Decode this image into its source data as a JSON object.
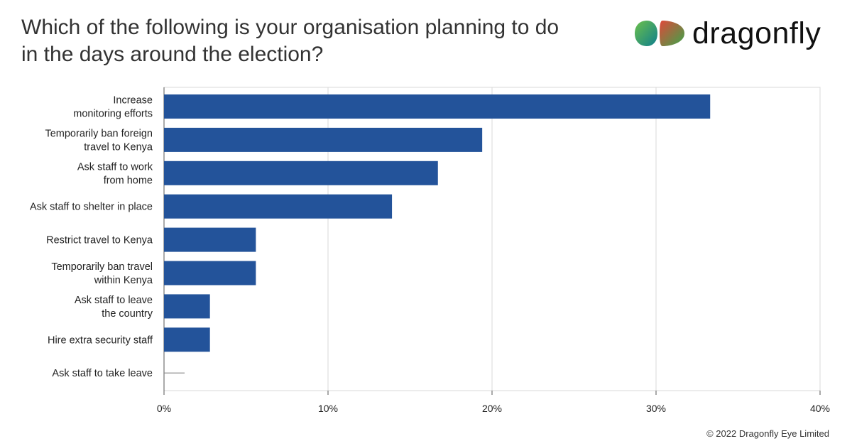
{
  "title_lines": [
    "Which of the following is your organisation planning to do",
    "in the days around the election?"
  ],
  "logo": {
    "text": "dragonfly",
    "icon": "dragonfly-logo-icon"
  },
  "footer": {
    "copyright": "© 2022 Dragonfly Eye Limited"
  },
  "colors": {
    "bar": "#23539a",
    "grid": "#d9d9d9",
    "axis": "#555555",
    "text": "#222222"
  },
  "chart_data": {
    "type": "bar",
    "orientation": "horizontal",
    "categories": [
      [
        "Increase",
        "monitoring efforts"
      ],
      [
        "Temporarily ban foreign",
        "travel to Kenya"
      ],
      [
        "Ask staff to work",
        "from home"
      ],
      [
        "Ask staff to shelter in place"
      ],
      [
        "Restrict travel to Kenya"
      ],
      [
        "Temporarily ban travel",
        "within Kenya"
      ],
      [
        "Ask staff to leave",
        "the country"
      ],
      [
        "Hire extra security staff"
      ],
      [
        "Ask staff to take leave"
      ]
    ],
    "values": [
      33.3,
      19.4,
      16.7,
      13.9,
      5.6,
      5.6,
      2.8,
      2.8,
      0
    ],
    "x_ticks": [
      "0%",
      "10%",
      "20%",
      "30%",
      "40%"
    ],
    "xlim": [
      0,
      40
    ],
    "grid": true,
    "legend": "none"
  }
}
